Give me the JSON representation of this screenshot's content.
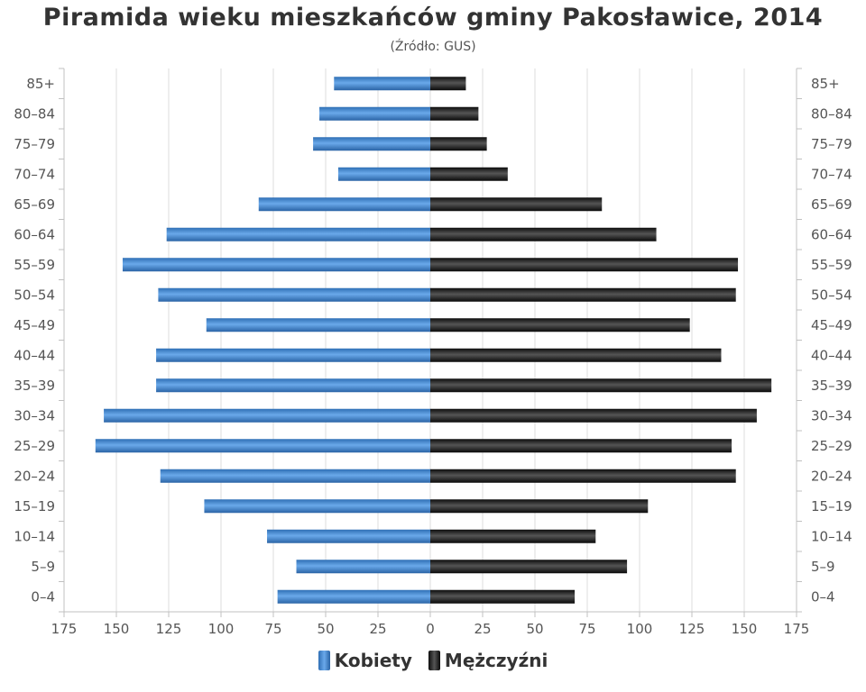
{
  "chart_data": {
    "type": "bar",
    "orientation": "horizontal-population-pyramid",
    "title": "Piramida wieku mieszkańców gminy Pakosławice, 2014",
    "subtitle": "(Źródło: GUS)",
    "categories": [
      "85+",
      "80-84",
      "75-79",
      "70-74",
      "65-69",
      "60-64",
      "55-59",
      "50-54",
      "45-49",
      "40-44",
      "35-39",
      "30-34",
      "25-29",
      "20-24",
      "15-19",
      "10-14",
      "5-9",
      "0-4"
    ],
    "category_labels": [
      "85+",
      "80–84",
      "75–79",
      "70–74",
      "65–69",
      "60–64",
      "55–59",
      "50–54",
      "45–49",
      "40–44",
      "35–39",
      "30–34",
      "25–29",
      "20–24",
      "15–19",
      "10–14",
      "5–9",
      "0–4"
    ],
    "series": [
      {
        "name": "Kobiety",
        "side": "left",
        "color": "#4a8fd6",
        "values": [
          46,
          53,
          56,
          44,
          82,
          126,
          147,
          130,
          107,
          131,
          131,
          156,
          160,
          129,
          108,
          78,
          64,
          73
        ]
      },
      {
        "name": "Mężczyźni",
        "side": "right",
        "color": "#1c1c1c",
        "values": [
          17,
          23,
          27,
          37,
          82,
          108,
          147,
          146,
          124,
          139,
          163,
          156,
          144,
          146,
          104,
          79,
          94,
          69
        ]
      }
    ],
    "xlim": [
      -175,
      175
    ],
    "x_ticks": [
      -175,
      -150,
      -125,
      -100,
      -75,
      -50,
      -25,
      0,
      25,
      50,
      75,
      100,
      125,
      150,
      175
    ],
    "x_tick_labels": [
      "175",
      "150",
      "125",
      "100",
      "75",
      "50",
      "25",
      "0",
      "25",
      "50",
      "75",
      "100",
      "125",
      "150",
      "175"
    ],
    "grid": true,
    "legend_position": "bottom-center"
  }
}
